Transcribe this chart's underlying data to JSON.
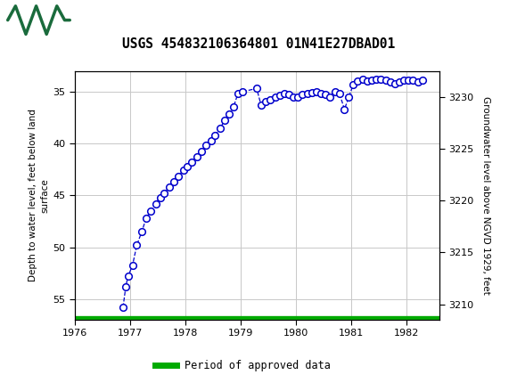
{
  "title": "USGS 454832106364801 01N41E27DBAD01",
  "ylabel_left": "Depth to water level, feet below land\nsurface",
  "ylabel_right": "Groundwater level above NGVD 1929, feet",
  "ylim_left": [
    57.0,
    33.0
  ],
  "ylim_right": [
    3208.5,
    3232.5
  ],
  "xlim": [
    1976.0,
    1982.6
  ],
  "xticks": [
    1976,
    1977,
    1978,
    1979,
    1980,
    1981,
    1982
  ],
  "yticks_left": [
    35,
    40,
    45,
    50,
    55
  ],
  "yticks_right": [
    3210,
    3215,
    3220,
    3225,
    3230
  ],
  "background_color": "#ffffff",
  "header_color": "#1a6b3c",
  "grid_color": "#c8c8c8",
  "line_color": "#0000cc",
  "marker_facecolor": "#ffffff",
  "marker_edgecolor": "#0000cc",
  "legend_label": "Period of approved data",
  "legend_color": "#00aa00",
  "data_x": [
    1976.87,
    1976.92,
    1976.96,
    1977.04,
    1977.12,
    1977.21,
    1977.29,
    1977.37,
    1977.46,
    1977.54,
    1977.62,
    1977.71,
    1977.79,
    1977.87,
    1977.96,
    1978.04,
    1978.12,
    1978.21,
    1978.29,
    1978.37,
    1978.46,
    1978.54,
    1978.63,
    1978.71,
    1978.79,
    1978.87,
    1978.95,
    1979.04,
    1979.29,
    1979.37,
    1979.46,
    1979.54,
    1979.63,
    1979.71,
    1979.79,
    1979.88,
    1979.96,
    1980.04,
    1980.12,
    1980.21,
    1980.29,
    1980.37,
    1980.46,
    1980.54,
    1980.62,
    1980.71,
    1980.79,
    1980.88,
    1980.96,
    1981.04,
    1981.12,
    1981.21,
    1981.29,
    1981.37,
    1981.46,
    1981.54,
    1981.63,
    1981.71,
    1981.79,
    1981.87,
    1981.96,
    1982.04,
    1982.12,
    1982.21,
    1982.29
  ],
  "data_y": [
    55.8,
    53.8,
    52.8,
    51.8,
    49.8,
    48.5,
    47.2,
    46.5,
    45.8,
    45.2,
    44.8,
    44.2,
    43.7,
    43.2,
    42.6,
    42.2,
    41.8,
    41.3,
    40.8,
    40.2,
    39.7,
    39.2,
    38.5,
    37.8,
    37.2,
    36.5,
    35.2,
    35.0,
    34.7,
    36.3,
    36.0,
    35.8,
    35.5,
    35.4,
    35.2,
    35.3,
    35.5,
    35.5,
    35.3,
    35.2,
    35.1,
    35.0,
    35.2,
    35.3,
    35.5,
    35.0,
    35.2,
    36.7,
    35.5,
    34.3,
    34.0,
    33.8,
    34.0,
    33.9,
    33.8,
    33.8,
    33.9,
    34.1,
    34.2,
    34.1,
    33.9,
    33.9,
    33.9,
    34.1,
    33.9
  ]
}
